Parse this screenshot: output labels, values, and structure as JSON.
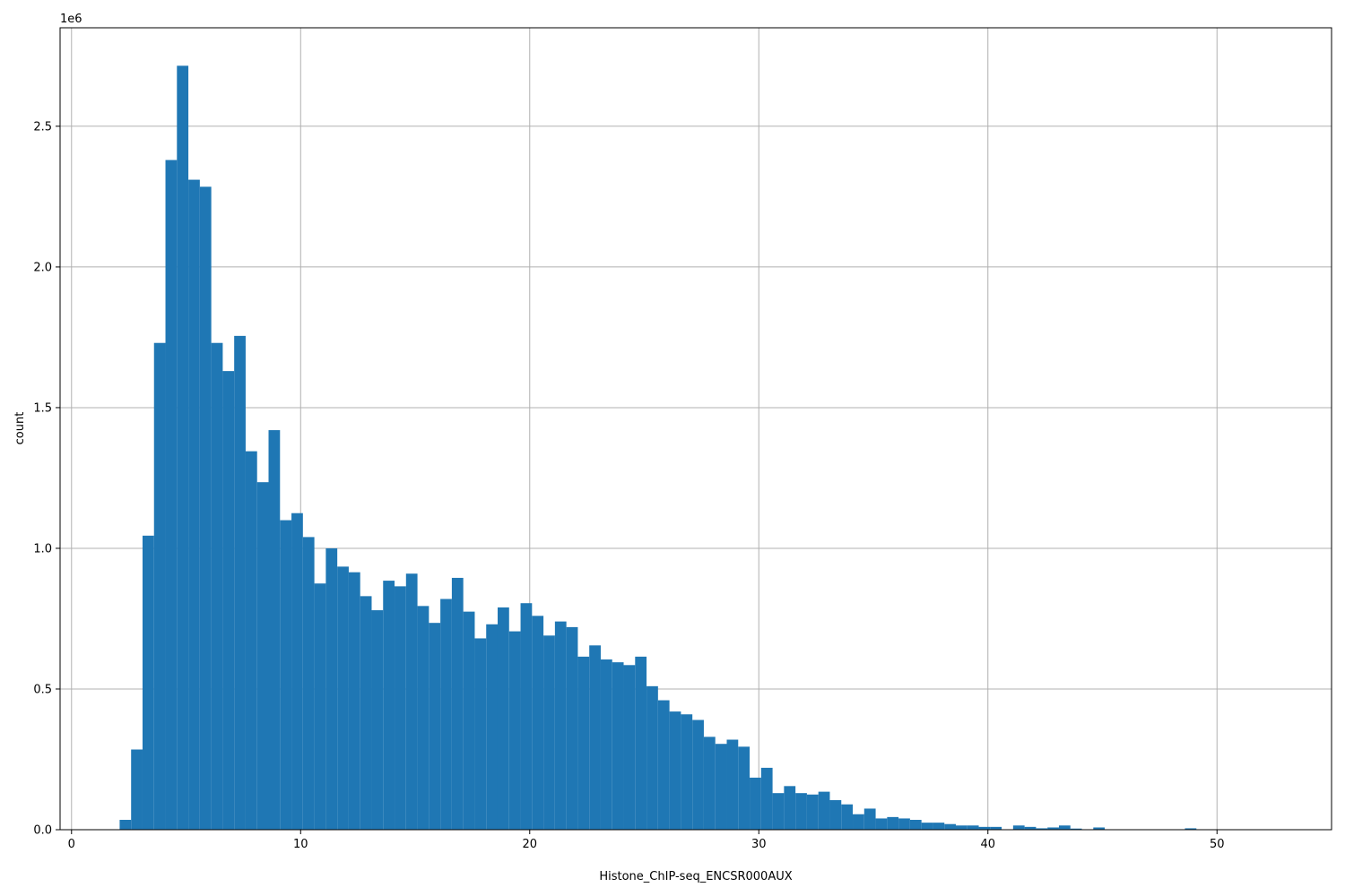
{
  "chart_data": {
    "type": "bar",
    "histogram": true,
    "title": "",
    "xlabel": "Histone_ChIP-seq_ENCSR000AUX",
    "ylabel": "count",
    "y_offset_label": "1e6",
    "xlim": [
      -0.5,
      55
    ],
    "ylim": [
      0,
      2.85
    ],
    "x_ticks": [
      0,
      10,
      20,
      30,
      40,
      50
    ],
    "x_tick_labels": [
      "0",
      "10",
      "20",
      "30",
      "40",
      "50"
    ],
    "y_ticks": [
      0,
      0.5,
      1.0,
      1.5,
      2.0,
      2.5
    ],
    "y_tick_labels": [
      "0.0",
      "0.5",
      "1.0",
      "1.5",
      "2.0",
      "2.5"
    ],
    "grid": true,
    "bar_color": "#1f77b4",
    "bin_start": 2.1,
    "bin_width": 0.5,
    "values": [
      0.035,
      0.285,
      1.045,
      1.73,
      2.38,
      2.715,
      2.31,
      2.285,
      1.73,
      1.63,
      1.755,
      1.345,
      1.235,
      1.42,
      1.1,
      1.125,
      1.04,
      0.875,
      1.0,
      0.935,
      0.915,
      0.83,
      0.78,
      0.885,
      0.865,
      0.91,
      0.795,
      0.735,
      0.82,
      0.895,
      0.775,
      0.68,
      0.73,
      0.79,
      0.705,
      0.805,
      0.76,
      0.69,
      0.74,
      0.72,
      0.615,
      0.655,
      0.605,
      0.595,
      0.585,
      0.615,
      0.51,
      0.46,
      0.42,
      0.41,
      0.39,
      0.33,
      0.305,
      0.32,
      0.295,
      0.185,
      0.22,
      0.13,
      0.155,
      0.13,
      0.125,
      0.135,
      0.105,
      0.09,
      0.055,
      0.075,
      0.04,
      0.045,
      0.04,
      0.035,
      0.025,
      0.025,
      0.02,
      0.015,
      0.015,
      0.01,
      0.01,
      0.001,
      0.015,
      0.01,
      0.005,
      0.008,
      0.015,
      0.004,
      0.001,
      0.008,
      0.001,
      0.001,
      0.001,
      0.001,
      0.001,
      0.001,
      0.001,
      0.005,
      0.001,
      0.001,
      0.001,
      0.001,
      0.001,
      0.001,
      0.001
    ]
  }
}
